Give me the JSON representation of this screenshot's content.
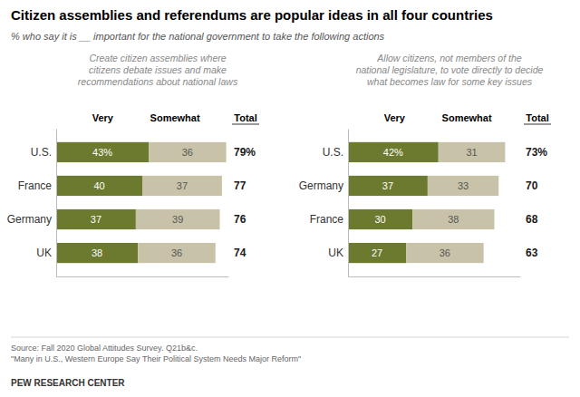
{
  "title": "Citizen assemblies and referendums are popular ideas in all four countries",
  "subtitle": "% who say it is __ important for the national government to take the following actions",
  "annotations": [
    "Source: Fall 2020 Global Attitudes Survey. Q21b&c.",
    "\"Many in U.S., Western Europe Say Their Political System Needs Major Reform\"",
    "PEW RESEARCH CENTER"
  ],
  "chart_data": [
    {
      "type": "bar",
      "orientation": "horizontal",
      "stacked": true,
      "data_labels": true,
      "tick_labels": false,
      "title": "Create citizen assemblies where\ncitizens debate issues and make\nrecommendations about national laws",
      "categories": [
        "U.S.",
        "France",
        "Germany",
        "UK"
      ],
      "series": [
        {
          "name": "Very",
          "color": "#6b7a2e",
          "values": [
            43,
            40,
            37,
            38
          ],
          "value_labels": [
            "43%",
            "40",
            "37",
            "38"
          ]
        },
        {
          "name": "Somewhat",
          "color": "#c8c3a8",
          "values": [
            36,
            37,
            39,
            36
          ]
        }
      ],
      "totals": {
        "name": "Total",
        "values": [
          79,
          77,
          76,
          74
        ],
        "value_labels": [
          "79%",
          "77",
          "76",
          "74"
        ]
      },
      "xlim": [
        0,
        80
      ]
    },
    {
      "type": "bar",
      "orientation": "horizontal",
      "stacked": true,
      "data_labels": true,
      "tick_labels": false,
      "title": "Allow citizens, not members of the\nnational legislature, to vote directly to decide\nwhat becomes law for some key issues",
      "categories": [
        "U.S.",
        "Germany",
        "France",
        "UK"
      ],
      "series": [
        {
          "name": "Very",
          "color": "#6b7a2e",
          "values": [
            42,
            37,
            30,
            27
          ],
          "value_labels": [
            "42%",
            "37",
            "30",
            "27"
          ]
        },
        {
          "name": "Somewhat",
          "color": "#c8c3a8",
          "values": [
            31,
            33,
            38,
            36
          ]
        }
      ],
      "totals": {
        "name": "Total",
        "values": [
          73,
          70,
          68,
          63
        ],
        "value_labels": [
          "73%",
          "70",
          "68",
          "63"
        ]
      },
      "xlim": [
        0,
        80
      ]
    }
  ]
}
